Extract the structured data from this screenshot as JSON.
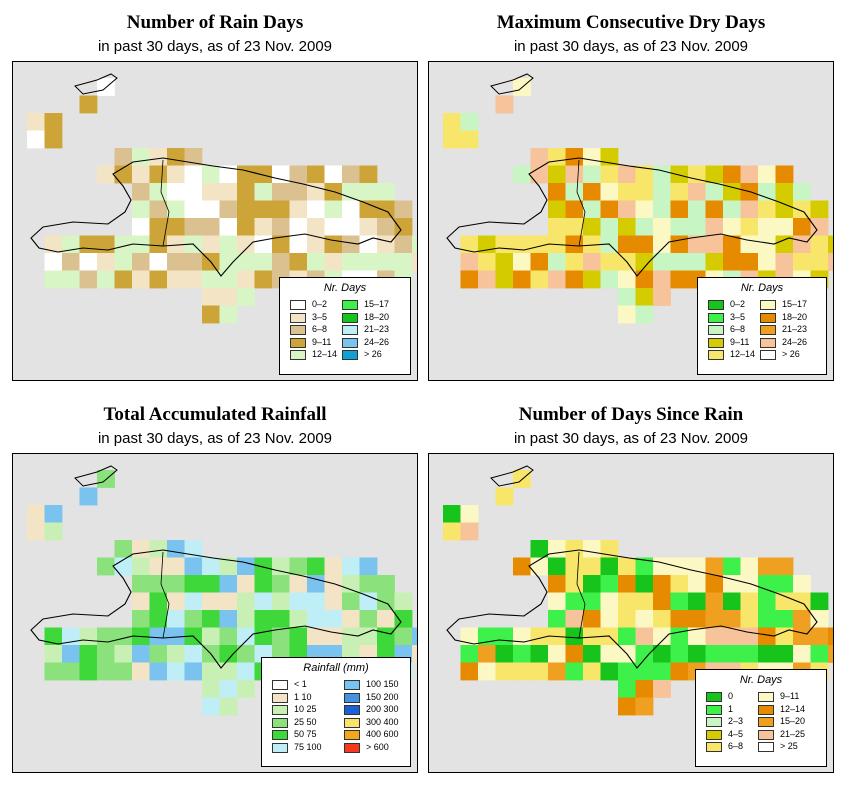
{
  "panels": [
    {
      "id": "rain-days",
      "title": "Number of Rain Days",
      "subtitle": "in past 30 days, as of  23 Nov. 2009",
      "legend": {
        "title": "Nr. Days",
        "items": [
          {
            "label": "0–2",
            "color": "#ffffff"
          },
          {
            "label": "3–5",
            "color": "#f3e4c6"
          },
          {
            "label": "6–8",
            "color": "#dcc190"
          },
          {
            "label": "9–11",
            "color": "#cda437"
          },
          {
            "label": "12–14",
            "color": "#d8f6c5"
          },
          {
            "label": "15–17",
            "color": "#3ef04a"
          },
          {
            "label": "18–20",
            "color": "#17c41c"
          },
          {
            "label": "21–23",
            "color": "#bfeef7"
          },
          {
            "label": "24–26",
            "color": "#7ac3ef"
          },
          {
            "label": "> 26",
            "color": "#109fd6"
          }
        ]
      },
      "map_colors": [
        "#ffffff",
        "#f3e4c6",
        "#dcc190",
        "#cda437",
        "#d8f6c5"
      ]
    },
    {
      "id": "dry-days",
      "title": "Maximum Consecutive Dry Days",
      "subtitle": "in past 30 days, as of  23 Nov. 2009",
      "legend": {
        "title": "Nr. Days",
        "items": [
          {
            "label": "0–2",
            "color": "#17c41c"
          },
          {
            "label": "3–5",
            "color": "#3ef04a"
          },
          {
            "label": "6–8",
            "color": "#c7f5c4"
          },
          {
            "label": "9–11",
            "color": "#d4cc00"
          },
          {
            "label": "12–14",
            "color": "#f8e66a"
          },
          {
            "label": "15–17",
            "color": "#fcf8c4"
          },
          {
            "label": "18–20",
            "color": "#e68a00"
          },
          {
            "label": "21–23",
            "color": "#f0a020"
          },
          {
            "label": "24–26",
            "color": "#f7c39a"
          },
          {
            "label": "> 26",
            "color": "#ffffff"
          }
        ]
      },
      "map_colors": [
        "#d4cc00",
        "#f8e66a",
        "#fcf8c4",
        "#e68a00",
        "#c7f5c4",
        "#f7c39a"
      ]
    },
    {
      "id": "total-rainfall",
      "title": "Total Accumulated Rainfall",
      "subtitle": "in past 30 days, as of  23 Nov. 2009",
      "legend": {
        "title": "Rainfall (mm)",
        "items": [
          {
            "label": "< 1",
            "color": "#ffffff"
          },
          {
            "label": "1    10",
            "color": "#f3e4c6"
          },
          {
            "label": "10    25",
            "color": "#c9f0b4"
          },
          {
            "label": "25    50",
            "color": "#8be27c"
          },
          {
            "label": "50    75",
            "color": "#3ed83a"
          },
          {
            "label": "75   100",
            "color": "#bfeef7"
          },
          {
            "label": "100   150",
            "color": "#7ac3ef"
          },
          {
            "label": "150   200",
            "color": "#4592e0"
          },
          {
            "label": "200   300",
            "color": "#1861d6"
          },
          {
            "label": "300   400",
            "color": "#f8e66a"
          },
          {
            "label": "400   600",
            "color": "#f7a51c"
          },
          {
            "label": "> 600",
            "color": "#f53b1c"
          }
        ]
      },
      "map_colors": [
        "#f3e4c6",
        "#c9f0b4",
        "#8be27c",
        "#3ed83a",
        "#bfeef7",
        "#7ac3ef"
      ]
    },
    {
      "id": "days-since-rain",
      "title": "Number of Days Since Rain",
      "subtitle": "in past 30 days, as of  23 Nov. 2009",
      "legend": {
        "title": "Nr. Days",
        "items": [
          {
            "label": "0",
            "color": "#17c41c"
          },
          {
            "label": "1",
            "color": "#3ef04a"
          },
          {
            "label": "2–3",
            "color": "#c7f5c4"
          },
          {
            "label": "4–5",
            "color": "#d4cc00"
          },
          {
            "label": "6–8",
            "color": "#f8e66a"
          },
          {
            "label": "9–11",
            "color": "#fcf8c4"
          },
          {
            "label": "12–14",
            "color": "#e68a00"
          },
          {
            "label": "15–20",
            "color": "#f0a020"
          },
          {
            "label": "21–25",
            "color": "#f7c39a"
          },
          {
            "label": "> 25",
            "color": "#ffffff"
          }
        ]
      },
      "map_colors": [
        "#17c41c",
        "#3ef04a",
        "#e68a00",
        "#f0a020",
        "#f8e66a",
        "#fcf8c4",
        "#f7c39a"
      ]
    }
  ]
}
